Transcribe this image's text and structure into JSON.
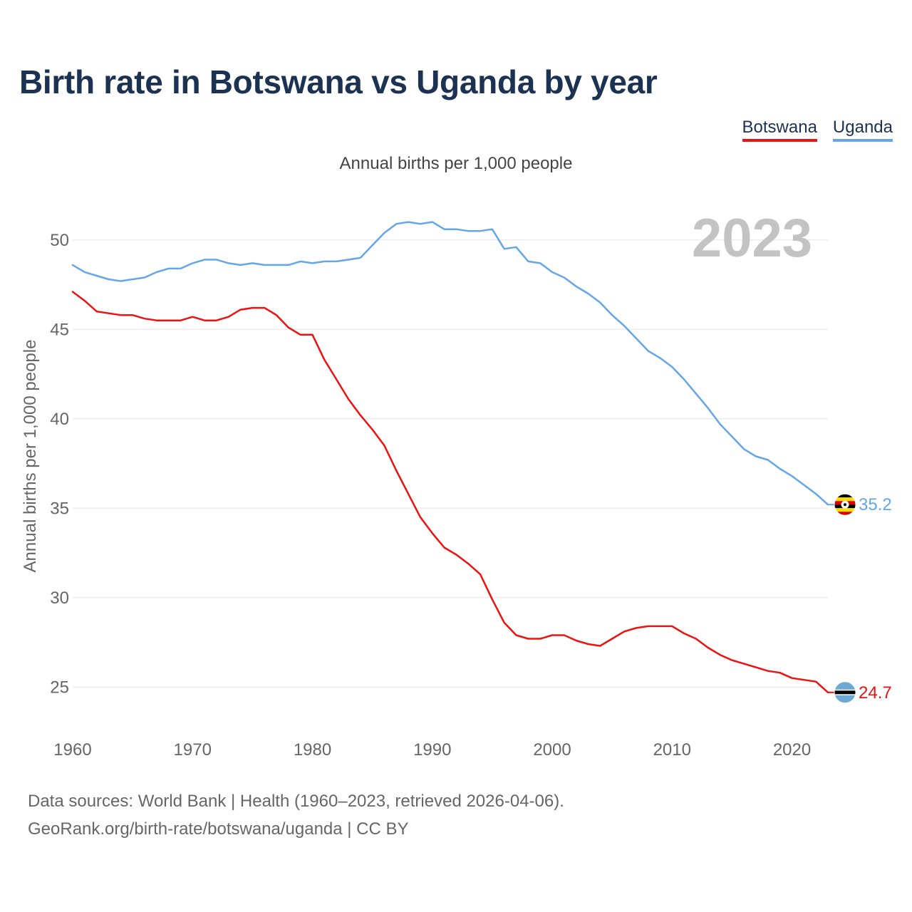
{
  "title": "Birth rate in Botswana vs Uganda by year",
  "subtitle": "Annual births per 1,000 people",
  "legend": {
    "botswana": "Botswana",
    "uganda": "Uganda"
  },
  "footer": {
    "line1": "Data sources: World Bank | Health (1960–2023, retrieved 2026-04-06).",
    "line2": "GeoRank.org/birth-rate/botswana/uganda | CC BY"
  },
  "chart_data": {
    "type": "line",
    "title": "Birth rate in Botswana vs Uganda by year",
    "ylabel": "Annual births per 1,000 people",
    "xlabel": "",
    "year_label": "2023",
    "xlim": [
      1960,
      2023
    ],
    "ylim": [
      22.5,
      52.5
    ],
    "x_ticks": [
      1960,
      1970,
      1980,
      1990,
      2000,
      2010,
      2020
    ],
    "y_ticks": [
      25,
      30,
      35,
      40,
      45,
      50
    ],
    "grid": true,
    "legend_position": "top-right",
    "x": [
      1960,
      1961,
      1962,
      1963,
      1964,
      1965,
      1966,
      1967,
      1968,
      1969,
      1970,
      1971,
      1972,
      1973,
      1974,
      1975,
      1976,
      1977,
      1978,
      1979,
      1980,
      1981,
      1982,
      1983,
      1984,
      1985,
      1986,
      1987,
      1988,
      1989,
      1990,
      1991,
      1992,
      1993,
      1994,
      1995,
      1996,
      1997,
      1998,
      1999,
      2000,
      2001,
      2002,
      2003,
      2004,
      2005,
      2006,
      2007,
      2008,
      2009,
      2010,
      2011,
      2012,
      2013,
      2014,
      2015,
      2016,
      2017,
      2018,
      2019,
      2020,
      2021,
      2022,
      2023
    ],
    "series": [
      {
        "name": "Botswana",
        "color": "#ee1111",
        "end_label": "24.7",
        "values": [
          47.1,
          46.6,
          46.0,
          45.9,
          45.8,
          45.8,
          45.6,
          45.5,
          45.5,
          45.5,
          45.7,
          45.5,
          45.5,
          45.7,
          46.1,
          46.2,
          46.2,
          45.8,
          45.1,
          44.7,
          44.7,
          43.3,
          42.2,
          41.1,
          40.2,
          39.4,
          38.5,
          37.1,
          35.8,
          34.5,
          33.6,
          32.8,
          32.4,
          31.9,
          31.3,
          29.9,
          28.6,
          27.9,
          27.7,
          27.7,
          27.9,
          27.9,
          27.6,
          27.4,
          27.3,
          27.7,
          28.1,
          28.3,
          28.4,
          28.4,
          28.4,
          28.0,
          27.7,
          27.2,
          26.8,
          26.5,
          26.3,
          26.1,
          25.9,
          25.8,
          25.5,
          25.4,
          25.3,
          24.7
        ]
      },
      {
        "name": "Uganda",
        "color": "#64a6e7",
        "end_label": "35.2",
        "values": [
          48.6,
          48.2,
          48.0,
          47.8,
          47.7,
          47.8,
          47.9,
          48.2,
          48.4,
          48.4,
          48.7,
          48.9,
          48.9,
          48.7,
          48.6,
          48.7,
          48.6,
          48.6,
          48.6,
          48.8,
          48.7,
          48.8,
          48.8,
          48.9,
          49.0,
          49.7,
          50.4,
          50.9,
          51.0,
          50.9,
          51.0,
          50.6,
          50.6,
          50.5,
          50.5,
          50.6,
          49.5,
          49.6,
          48.8,
          48.7,
          48.2,
          47.9,
          47.4,
          47.0,
          46.5,
          45.8,
          45.2,
          44.5,
          43.8,
          43.4,
          42.9,
          42.2,
          41.4,
          40.6,
          39.7,
          39.0,
          38.3,
          37.9,
          37.7,
          37.2,
          36.8,
          36.3,
          35.8,
          35.2
        ]
      }
    ]
  }
}
